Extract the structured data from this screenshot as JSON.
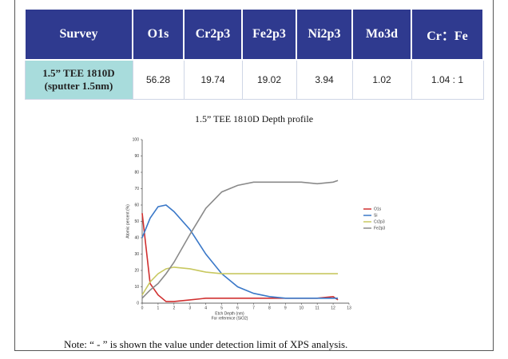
{
  "table": {
    "header": [
      "Survey",
      "O1s",
      "Cr2p3",
      "Fe2p3",
      "Ni2p3",
      "Mo3d",
      "Cr：Fe"
    ],
    "rows": [
      [
        "1.5” TEE 1810D (sputter 1.5nm)",
        56.28,
        19.74,
        19.02,
        3.94,
        1.02,
        "1.04 : 1"
      ]
    ]
  },
  "chart_data": {
    "type": "line",
    "title": "1.5” TEE 1810D Depth profile",
    "x_label": "Etch Depth (nm)",
    "x_sublabel": "For reference (SiO2)",
    "y_label": "Atomic percent (%)",
    "x": [
      0,
      0.5,
      1,
      1.5,
      2,
      3,
      4,
      5,
      6,
      7,
      8,
      9,
      10,
      11,
      12,
      12.3
    ],
    "series": [
      {
        "name": "O1s",
        "color": "#d03030",
        "values": [
          55,
          12,
          5,
          1,
          1,
          2,
          3,
          3,
          3,
          3,
          3,
          3,
          3,
          3,
          4,
          2
        ]
      },
      {
        "name": "Si",
        "color": "#3a78c8",
        "values": [
          40,
          52,
          59,
          60,
          56,
          45,
          30,
          18,
          10,
          6,
          4,
          3,
          3,
          3,
          3,
          3
        ]
      },
      {
        "name": "Cr2p3",
        "color": "#c8c860",
        "values": [
          5,
          13,
          18,
          21,
          22,
          21,
          19,
          18,
          18,
          18,
          18,
          18,
          18,
          18,
          18,
          18
        ]
      },
      {
        "name": "Fe2p3",
        "color": "#8a8a8a",
        "values": [
          3,
          8,
          12,
          18,
          25,
          42,
          58,
          68,
          72,
          74,
          74,
          74,
          74,
          73,
          74,
          75
        ]
      }
    ],
    "xlim": [
      0,
      13
    ],
    "xticks": [
      0,
      1,
      2,
      3,
      4,
      5,
      6,
      7,
      8,
      9,
      10,
      11,
      12,
      13
    ],
    "ylim": [
      0,
      100
    ],
    "yticks": [
      0,
      10,
      20,
      30,
      40,
      50,
      60,
      70,
      80,
      90,
      100
    ]
  },
  "note": "Note: “ - ” is shown the value under detection limit of XPS analysis."
}
